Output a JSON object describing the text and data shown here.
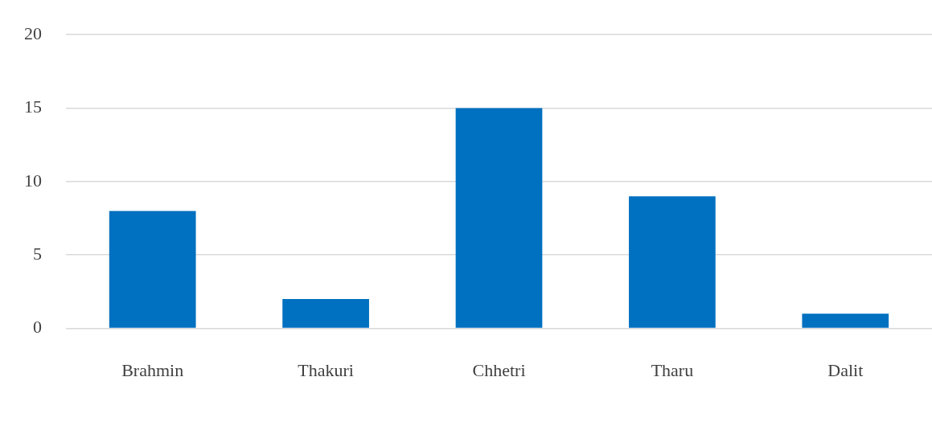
{
  "chart_data": {
    "type": "bar",
    "categories": [
      "Brahmin",
      "Thakuri",
      "Chhetri",
      "Tharu",
      "Dalit"
    ],
    "values": [
      8,
      2,
      15,
      9,
      1
    ],
    "color": "#0070c0",
    "ylim": [
      0,
      20
    ],
    "yticks": [
      0,
      5,
      10,
      15,
      20
    ],
    "grid": "y",
    "legend": false
  }
}
